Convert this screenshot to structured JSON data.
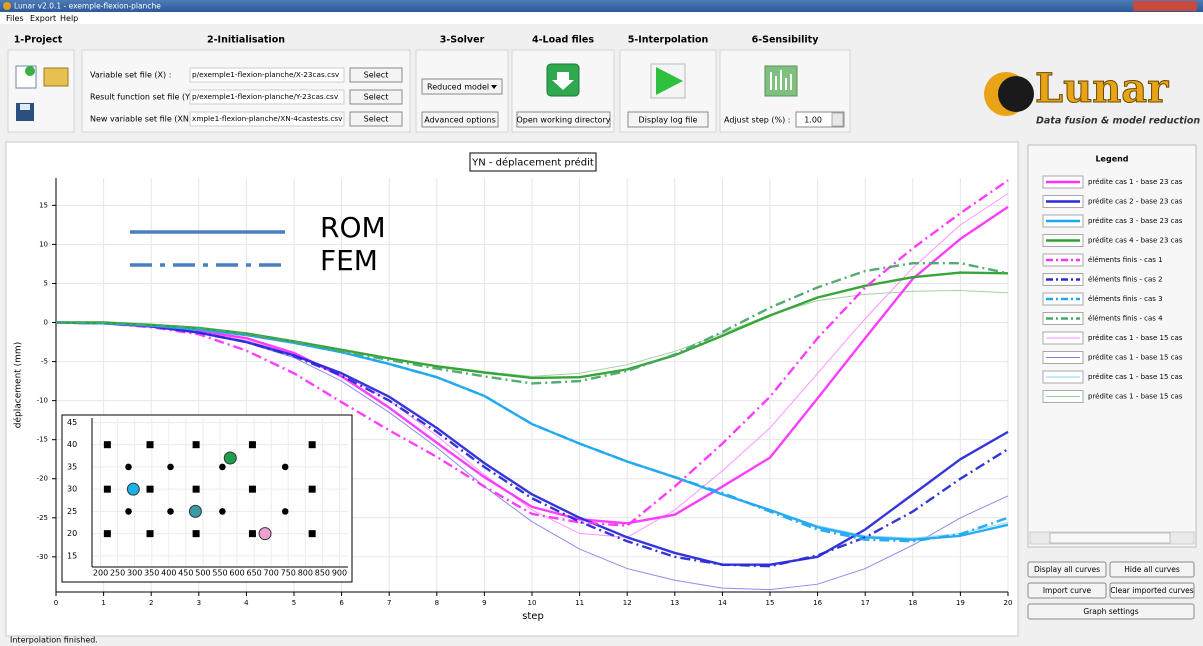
{
  "window": {
    "title": "Lunar v2.0.1 - exemple-flexion-planche",
    "menu": [
      "Files",
      "Export",
      "Help"
    ]
  },
  "toolbar": {
    "project": {
      "title": "1-Project"
    },
    "initialisation": {
      "title": "2-Initialisation",
      "rows": [
        {
          "label": "Variable set file (X) :",
          "path": "p/exemple1-flexion-planche/X-23cas.csv",
          "button": "Select"
        },
        {
          "label": "Result function set file (Y) :",
          "path": "p/exemple1-flexion-planche/Y-23cas.csv",
          "button": "Select"
        },
        {
          "label": "New variable set file (XN) :",
          "path": "xmple1-flexion-planche/XN-4castests.csv",
          "button": "Select"
        }
      ]
    },
    "solver": {
      "title": "3-Solver",
      "model": "Reduced model",
      "button": "Advanced options"
    },
    "load_files": {
      "title": "4-Load files",
      "button": "Open working directory"
    },
    "interpolation": {
      "title": "5-Interpolation",
      "button": "Display log file"
    },
    "sensibility": {
      "title": "6-Sensibility",
      "label": "Adjust step (%) :",
      "value": "1.00"
    },
    "logo": {
      "name": "Lunar",
      "tagline": "Data fusion & model reduction"
    }
  },
  "chart_data": [
    {
      "type": "line",
      "title": "YN - déplacement prédit",
      "x_label": "step",
      "y_label": "déplacement (mm)",
      "x": [
        0,
        1,
        2,
        3,
        4,
        5,
        6,
        7,
        8,
        9,
        10,
        11,
        12,
        13,
        14,
        15,
        16,
        17,
        18,
        19,
        20
      ],
      "xlim": [
        0,
        20
      ],
      "xticks": [
        0,
        1,
        2,
        3,
        4,
        5,
        6,
        7,
        8,
        9,
        10,
        11,
        12,
        13,
        14,
        15,
        16,
        17,
        18,
        19,
        20
      ],
      "ylim": [
        -34.5,
        18.5
      ],
      "yticks": [
        -30,
        -25,
        -20,
        -15,
        -10,
        -5,
        0,
        5,
        10,
        15
      ],
      "grid": true,
      "annotation_color": "#4a7fc1",
      "annotations": [
        {
          "text": "ROM",
          "linestyle": "solid"
        },
        {
          "text": "FEM",
          "linestyle": "dashdot"
        }
      ],
      "series": [
        {
          "name": "prédite cas 1 - base 23 cas",
          "color": "#ff33ff",
          "linestyle": "solid",
          "values": [
            0,
            -0.1,
            -0.5,
            -1.1,
            -2,
            -3.9,
            -6.9,
            -10.9,
            -15.4,
            -19.8,
            -23.6,
            -25.2,
            -25.7,
            -24.6,
            -21,
            -17.3,
            -9.7,
            -2,
            5.6,
            10.7,
            14.8
          ]
        },
        {
          "name": "prédite cas 2 - base 23 cas",
          "color": "#2a2ad8",
          "linestyle": "solid",
          "values": [
            0,
            -0.1,
            -0.5,
            -1.3,
            -2.5,
            -4.2,
            -6.5,
            -9.5,
            -13.5,
            -18,
            -22,
            -25,
            -27.5,
            -29.5,
            -31,
            -31,
            -30,
            -26.5,
            -22,
            -17.5,
            -14
          ]
        },
        {
          "name": "prédite cas 3 - base 23 cas",
          "color": "#1fa8f0",
          "linestyle": "solid",
          "values": [
            0,
            -0.1,
            -0.4,
            -0.9,
            -1.6,
            -2.6,
            -3.8,
            -5.3,
            -7,
            -9.4,
            -13,
            -15.5,
            -17.8,
            -19.8,
            -22,
            -24,
            -26.2,
            -27.5,
            -27.8,
            -27.3,
            -25.9
          ]
        },
        {
          "name": "prédite cas 4 - base 23 cas",
          "color": "#2ea02e",
          "linestyle": "solid",
          "values": [
            0,
            0,
            -0.3,
            -0.7,
            -1.4,
            -2.4,
            -3.5,
            -4.6,
            -5.6,
            -6.4,
            -7.1,
            -7,
            -6,
            -4.2,
            -1.7,
            0.9,
            3.2,
            4.7,
            5.8,
            6.4,
            6.3
          ]
        },
        {
          "name": "éléments finis - cas 1",
          "color": "#ff33ff",
          "linestyle": "dashdot",
          "values": [
            0,
            -0.1,
            -0.6,
            -1.5,
            -3.6,
            -6.5,
            -10.2,
            -13.8,
            -17.2,
            -21,
            -24.5,
            -25.6,
            -26,
            -21,
            -15.5,
            -9.5,
            -2,
            4.5,
            9.5,
            14,
            18.2
          ]
        },
        {
          "name": "éléments finis - cas 2",
          "color": "#2a2ad8",
          "linestyle": "dashdot",
          "values": [
            0,
            -0.1,
            -0.5,
            -1.3,
            -2.5,
            -4.3,
            -6.8,
            -10,
            -14,
            -18.5,
            -22.5,
            -25.5,
            -28,
            -30,
            -31,
            -31.2,
            -29.8,
            -27.5,
            -24.2,
            -20,
            -16.2
          ]
        },
        {
          "name": "éléments finis - cas 3",
          "color": "#1fa8f0",
          "linestyle": "dashdot",
          "values": [
            0,
            -0.1,
            -0.4,
            -0.9,
            -1.6,
            -2.6,
            -3.8,
            -5.3,
            -7,
            -9.4,
            -13,
            -15.5,
            -17.8,
            -19.8,
            -21.8,
            -24.2,
            -26.5,
            -27.8,
            -28,
            -27.1,
            -25
          ]
        },
        {
          "name": "éléments finis - cas 4",
          "color": "#4aa86a",
          "linestyle": "dashdot",
          "values": [
            0,
            0,
            -0.3,
            -0.7,
            -1.5,
            -2.5,
            -3.7,
            -4.8,
            -5.9,
            -6.9,
            -7.8,
            -7.5,
            -6.2,
            -4.1,
            -1.2,
            1.9,
            4.5,
            6.6,
            7.6,
            7.6,
            6.3
          ]
        },
        {
          "name": "prédite cas 1 - base 15 cas",
          "color": "#ff8cff",
          "linestyle": "thin",
          "values": [
            0,
            -0.1,
            -0.5,
            -1.2,
            -2.3,
            -4,
            -6.5,
            -10,
            -14.5,
            -19.5,
            -24,
            -27,
            -27.5,
            -24,
            -19,
            -13.5,
            -6.5,
            0.5,
            7,
            12.5,
            16.5
          ]
        },
        {
          "name": "prédite cas 1 - base 15 cas",
          "color": "#7f7ff0",
          "linestyle": "thin",
          "values": [
            0,
            -0.1,
            -0.5,
            -1.3,
            -2.6,
            -4.5,
            -7.5,
            -11.5,
            -16,
            -21,
            -25.5,
            -29,
            -31.5,
            -33,
            -34,
            -34.2,
            -33.5,
            -31.5,
            -28.5,
            -25,
            -22.2
          ]
        },
        {
          "name": "prédite cas 1 - base 15 cas",
          "color": "#88d4f5",
          "linestyle": "thin",
          "values": [
            0,
            -0.1,
            -0.4,
            -0.9,
            -1.6,
            -2.6,
            -3.8,
            -5.3,
            -7,
            -9.4,
            -13,
            -15.5,
            -17.8,
            -19.8,
            -22,
            -24,
            -26,
            -27.3,
            -27.6,
            -27,
            -25.6
          ]
        },
        {
          "name": "prédite cas 1 - base 15 cas",
          "color": "#9ccc9c",
          "linestyle": "thin",
          "values": [
            0,
            0,
            -0.3,
            -0.7,
            -1.4,
            -2.4,
            -3.5,
            -4.6,
            -5.5,
            -6.3,
            -6.9,
            -6.5,
            -5.4,
            -3.7,
            -1.4,
            1,
            2.8,
            3.6,
            4,
            4.1,
            3.8
          ]
        }
      ]
    },
    {
      "type": "scatter",
      "xlim": [
        175,
        925
      ],
      "xticks": [
        200,
        250,
        300,
        350,
        400,
        450,
        500,
        550,
        600,
        650,
        700,
        750,
        800,
        850,
        900
      ],
      "ylim": [
        12.5,
        46
      ],
      "yticks": [
        15,
        20,
        25,
        30,
        35,
        40,
        45
      ],
      "grid": true,
      "series": [
        {
          "marker": "square",
          "color": "#000000",
          "x": [
            220,
            345,
            480,
            645,
            820,
            220,
            345,
            480,
            645,
            820,
            220,
            345,
            480,
            645,
            820
          ],
          "y": [
            40,
            40,
            40,
            40,
            40,
            30,
            30,
            30,
            30,
            30,
            20,
            20,
            20,
            20,
            20
          ]
        },
        {
          "marker": "circle",
          "color": "#000000",
          "x": [
            282,
            405,
            557,
            741,
            282,
            405,
            557,
            741
          ],
          "y": [
            35,
            35,
            35,
            35,
            25,
            25,
            25,
            25
          ]
        },
        {
          "marker": "large-circle",
          "color": "#1ab0e8",
          "x": [
            296
          ],
          "y": [
            30
          ]
        },
        {
          "marker": "large-circle",
          "color": "#3a9aa8",
          "x": [
            478
          ],
          "y": [
            25
          ]
        },
        {
          "marker": "large-circle",
          "color": "#1f9e4a",
          "x": [
            580
          ],
          "y": [
            37
          ]
        },
        {
          "marker": "large-circle",
          "color": "#f0a0d0",
          "x": [
            682
          ],
          "y": [
            20
          ]
        }
      ]
    }
  ],
  "legend_panel": {
    "title": "Legend"
  },
  "buttons": [
    "Display all curves",
    "Hide all curves",
    "Import curve",
    "Clear imported curves",
    "Graph settings"
  ],
  "status": "Interpolation finished."
}
